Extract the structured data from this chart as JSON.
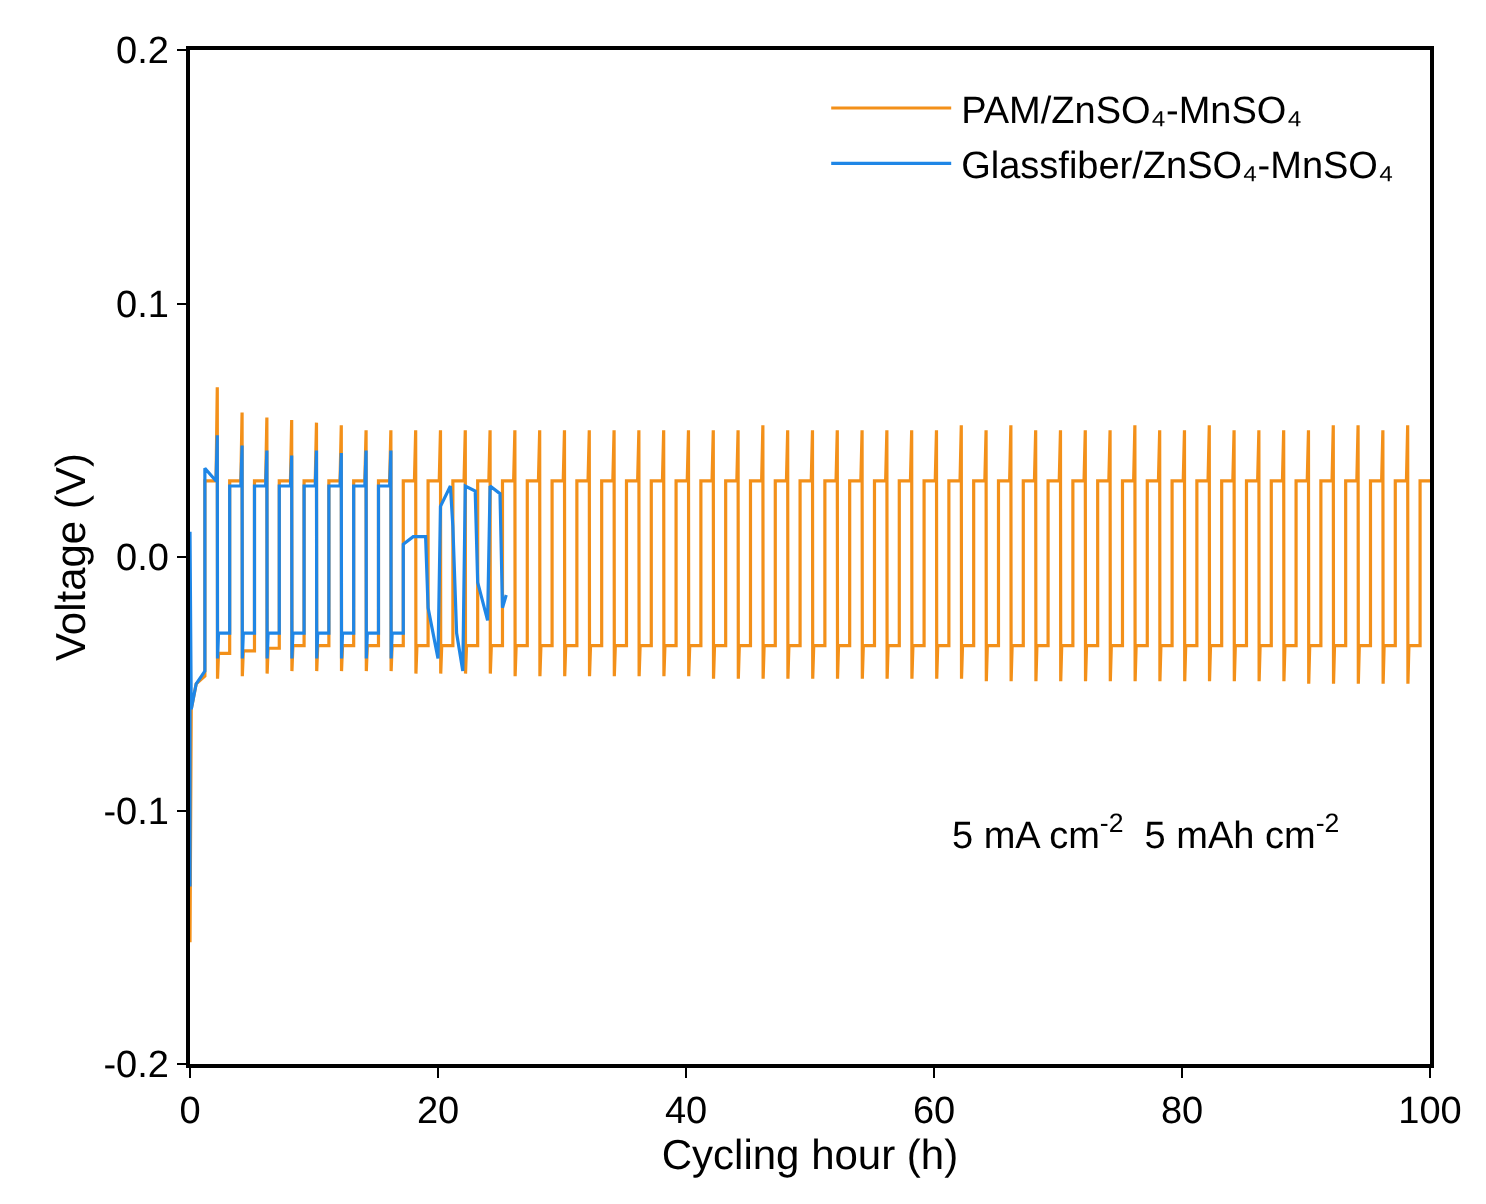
{
  "chart_data": {
    "type": "line",
    "xlabel": "Cycling hour (h)",
    "ylabel": "Voltage (V)",
    "xlim": [
      0,
      100
    ],
    "xticks": [
      0,
      20,
      40,
      60,
      80,
      100
    ],
    "ylim": [
      -0.2,
      0.2
    ],
    "yticks": [
      -0.2,
      -0.1,
      {
        "value": 0,
        "label": "0.0"
      },
      0.1,
      0.2
    ],
    "grid": false,
    "legend": "top right",
    "line_style": "solid",
    "marker": "none",
    "annotations": [
      "5 mA cm$^{-2}$  5 mAh cm$^{-2}$"
    ],
    "series": [
      {
        "name": "PAM/ZnSO₄-MnSO₄",
        "color": "#f39019",
        "x": [
          0,
          0.1,
          0.5,
          1.2,
          1.2,
          2.1,
          2.2,
          2.22,
          2.3,
          3.2,
          3.2,
          4.1,
          4.2,
          4.22,
          4.3,
          5.2,
          5.2,
          6.1,
          6.2,
          6.22,
          6.3,
          7.2,
          7.2,
          8.1,
          8.2,
          8.22,
          8.3,
          9.2,
          9.2,
          10.1,
          10.2,
          10.22,
          10.3,
          11.2,
          11.2,
          12.1,
          12.2,
          12.22,
          12.3,
          13.2,
          13.2,
          14.1,
          14.2,
          14.22,
          14.3,
          15.2,
          15.2,
          16.1,
          16.2,
          16.22,
          16.3,
          17.2,
          17.2,
          18.1,
          18.2,
          18.22,
          18.3,
          19.2,
          19.2,
          20.1,
          20.2,
          20.22,
          20.3,
          21.2,
          21.2,
          22.1,
          22.2,
          22.22,
          22.3,
          23.2,
          23.2,
          24.1,
          24.2,
          24.22,
          24.3,
          25.2,
          25.2,
          26.1,
          26.2,
          26.22,
          26.3,
          27.2,
          27.2,
          28.1,
          28.2,
          28.22,
          28.3,
          29.2,
          29.2,
          30.1,
          30.2,
          30.22,
          30.3,
          31.2,
          31.2,
          32.1,
          32.2,
          32.22,
          32.3,
          33.2,
          33.2,
          34.1,
          34.2,
          34.22,
          34.3,
          35.2,
          35.2,
          36.1,
          36.2,
          36.22,
          36.3,
          37.2,
          37.2,
          38.1,
          38.2,
          38.22,
          38.3,
          39.2,
          39.2,
          40.1,
          40.2,
          40.22,
          40.3,
          41.2,
          41.2,
          42.1,
          42.2,
          42.22,
          42.3,
          43.2,
          43.2,
          44.1,
          44.2,
          44.22,
          44.3,
          45.2,
          45.2,
          46.1,
          46.2,
          46.22,
          46.3,
          47.2,
          47.2,
          48.1,
          48.2,
          48.22,
          48.3,
          49.2,
          49.2,
          50.1,
          50.2,
          50.22,
          50.3,
          51.2,
          51.2,
          52.1,
          52.2,
          52.22,
          52.3,
          53.2,
          53.2,
          54.1,
          54.2,
          54.22,
          54.3,
          55.2,
          55.2,
          56.1,
          56.2,
          56.22,
          56.3,
          57.2,
          57.2,
          58.1,
          58.2,
          58.22,
          58.3,
          59.2,
          59.2,
          60.1,
          60.2,
          60.22,
          60.3,
          61.2,
          61.2,
          62.1,
          62.2,
          62.22,
          62.3,
          63.2,
          63.2,
          64.1,
          64.2,
          64.22,
          64.3,
          65.2,
          65.2,
          66.1,
          66.2,
          66.22,
          66.3,
          67.2,
          67.2,
          68.1,
          68.2,
          68.22,
          68.3,
          69.2,
          69.2,
          70.1,
          70.2,
          70.22,
          70.3,
          71.2,
          71.2,
          72.1,
          72.2,
          72.22,
          72.3,
          73.2,
          73.2,
          74.1,
          74.2,
          74.22,
          74.3,
          75.2,
          75.2,
          76.1,
          76.2,
          76.22,
          76.3,
          77.2,
          77.2,
          78.1,
          78.2,
          78.22,
          78.3,
          79.2,
          79.2,
          80.1,
          80.2,
          80.22,
          80.3,
          81.2,
          81.2,
          82.1,
          82.2,
          82.22,
          82.3,
          83.2,
          83.2,
          84.1,
          84.2,
          84.22,
          84.3,
          85.2,
          85.2,
          86.1,
          86.2,
          86.22,
          86.3,
          87.2,
          87.2,
          88.1,
          88.2,
          88.22,
          88.3,
          89.2,
          89.2,
          90.1,
          90.2,
          90.22,
          90.3,
          91.2,
          91.2,
          92.1,
          92.2,
          92.22,
          92.3,
          93.2,
          93.2,
          94.1,
          94.2,
          94.22,
          94.3,
          95.2,
          95.2,
          96.1,
          96.2,
          96.22,
          96.3,
          97.2,
          97.2,
          98.1,
          98.2,
          98.22,
          98.3,
          99.2,
          99.2,
          100
        ],
        "values": [
          -0.152,
          -0.06,
          -0.05,
          -0.047,
          0.03,
          0.03,
          0.067,
          -0.048,
          -0.038,
          -0.038,
          0.03,
          0.03,
          0.057,
          -0.047,
          -0.037,
          -0.037,
          0.03,
          0.03,
          0.055,
          -0.046,
          -0.036,
          -0.036,
          0.03,
          0.03,
          0.054,
          -0.045,
          -0.035,
          -0.035,
          0.03,
          0.03,
          0.053,
          -0.045,
          -0.035,
          -0.035,
          0.03,
          0.03,
          0.052,
          -0.045,
          -0.035,
          -0.035,
          0.03,
          0.03,
          0.05,
          -0.045,
          -0.035,
          -0.035,
          0.03,
          0.03,
          0.05,
          -0.045,
          -0.035,
          -0.035,
          0.03,
          0.03,
          0.05,
          -0.046,
          -0.035,
          -0.035,
          0.03,
          0.03,
          0.05,
          -0.046,
          -0.035,
          -0.035,
          0.03,
          0.03,
          0.05,
          -0.046,
          -0.035,
          -0.035,
          0.03,
          0.03,
          0.05,
          -0.046,
          -0.035,
          -0.035,
          0.03,
          0.03,
          0.05,
          -0.047,
          -0.035,
          -0.035,
          0.03,
          0.03,
          0.05,
          -0.047,
          -0.035,
          -0.035,
          0.03,
          0.03,
          0.05,
          -0.047,
          -0.035,
          -0.035,
          0.03,
          0.03,
          0.05,
          -0.047,
          -0.035,
          -0.035,
          0.03,
          0.03,
          0.05,
          -0.047,
          -0.035,
          -0.035,
          0.03,
          0.03,
          0.05,
          -0.047,
          -0.035,
          -0.035,
          0.03,
          0.03,
          0.05,
          -0.047,
          -0.035,
          -0.035,
          0.03,
          0.03,
          0.05,
          -0.047,
          -0.035,
          -0.035,
          0.03,
          0.03,
          0.05,
          -0.048,
          -0.035,
          -0.035,
          0.03,
          0.03,
          0.05,
          -0.048,
          -0.035,
          -0.035,
          0.03,
          0.03,
          0.052,
          -0.048,
          -0.035,
          -0.035,
          0.03,
          0.03,
          0.05,
          -0.048,
          -0.035,
          -0.035,
          0.03,
          0.03,
          0.05,
          -0.048,
          -0.035,
          -0.035,
          0.03,
          0.03,
          0.05,
          -0.048,
          -0.035,
          -0.035,
          0.03,
          0.03,
          0.05,
          -0.048,
          -0.035,
          -0.035,
          0.03,
          0.03,
          0.05,
          -0.048,
          -0.035,
          -0.035,
          0.03,
          0.03,
          0.05,
          -0.048,
          -0.035,
          -0.035,
          0.03,
          0.03,
          0.05,
          -0.048,
          -0.035,
          -0.035,
          0.03,
          0.03,
          0.052,
          -0.048,
          -0.035,
          -0.035,
          0.03,
          0.03,
          0.05,
          -0.049,
          -0.035,
          -0.035,
          0.03,
          0.03,
          0.052,
          -0.049,
          -0.035,
          -0.035,
          0.03,
          0.03,
          0.05,
          -0.049,
          -0.035,
          -0.035,
          0.03,
          0.03,
          0.05,
          -0.049,
          -0.035,
          -0.035,
          0.03,
          0.03,
          0.05,
          -0.049,
          -0.035,
          -0.035,
          0.03,
          0.03,
          0.05,
          -0.049,
          -0.035,
          -0.035,
          0.03,
          0.03,
          0.052,
          -0.049,
          -0.035,
          -0.035,
          0.03,
          0.03,
          0.05,
          -0.049,
          -0.035,
          -0.035,
          0.03,
          0.03,
          0.05,
          -0.049,
          -0.035,
          -0.035,
          0.03,
          0.03,
          0.052,
          -0.049,
          -0.035,
          -0.035,
          0.03,
          0.03,
          0.05,
          -0.049,
          -0.035,
          -0.035,
          0.03,
          0.03,
          0.05,
          -0.049,
          -0.035,
          -0.035,
          0.03,
          0.03,
          0.05,
          -0.049,
          -0.035,
          -0.035,
          0.03,
          0.03,
          0.05,
          -0.05,
          -0.035,
          -0.035,
          0.03,
          0.03,
          0.052,
          -0.05,
          -0.035,
          -0.035,
          0.03,
          0.03,
          0.052,
          -0.05,
          -0.035,
          -0.035,
          0.03,
          0.03,
          0.05,
          -0.05,
          -0.035,
          -0.035,
          0.03,
          0.03,
          0.052,
          -0.05,
          -0.035,
          -0.035,
          0.03,
          0.03
        ]
      },
      {
        "name": "Glassfiber/ZnSO₄-MnSO₄",
        "color": "#1f86e6",
        "x": [
          0,
          0,
          0.1,
          0.5,
          1.2,
          1.2,
          2.1,
          2.2,
          2.22,
          2.3,
          3.2,
          3.2,
          4.1,
          4.2,
          4.22,
          4.3,
          5.2,
          5.2,
          6.1,
          6.2,
          6.22,
          6.3,
          7.2,
          7.2,
          8.1,
          8.2,
          8.22,
          8.3,
          9.2,
          9.2,
          10.1,
          10.2,
          10.22,
          10.3,
          11.2,
          11.2,
          12.1,
          12.2,
          12.22,
          12.3,
          13.2,
          13.2,
          14.1,
          14.2,
          14.22,
          14.3,
          15.2,
          15.2,
          16.1,
          16.2,
          16.22,
          16.3,
          17.2,
          17.2,
          18.0,
          19.0,
          19.2,
          20.0,
          20.2,
          21.0,
          21.2,
          21.5,
          22.0,
          22.2,
          23.0,
          23.2,
          24.0,
          24.2,
          25.0,
          25.2,
          25.5
        ],
        "values": [
          -0.13,
          0.01,
          -0.06,
          -0.05,
          -0.045,
          0.035,
          0.03,
          0.048,
          -0.04,
          -0.03,
          -0.03,
          0.028,
          0.028,
          0.044,
          -0.04,
          -0.03,
          -0.03,
          0.028,
          0.028,
          0.042,
          -0.04,
          -0.03,
          -0.03,
          0.028,
          0.028,
          0.04,
          -0.04,
          -0.03,
          -0.03,
          0.028,
          0.028,
          0.042,
          -0.04,
          -0.03,
          -0.03,
          0.028,
          0.028,
          0.041,
          -0.04,
          -0.03,
          -0.03,
          0.028,
          0.028,
          0.042,
          -0.04,
          -0.03,
          -0.03,
          0.028,
          0.028,
          0.042,
          -0.04,
          -0.03,
          -0.03,
          0.005,
          0.008,
          0.008,
          -0.02,
          -0.04,
          0.02,
          0.028,
          0.012,
          -0.03,
          -0.045,
          0.028,
          0.026,
          -0.01,
          -0.025,
          0.028,
          0.025,
          -0.02,
          -0.015
        ]
      }
    ]
  }
}
